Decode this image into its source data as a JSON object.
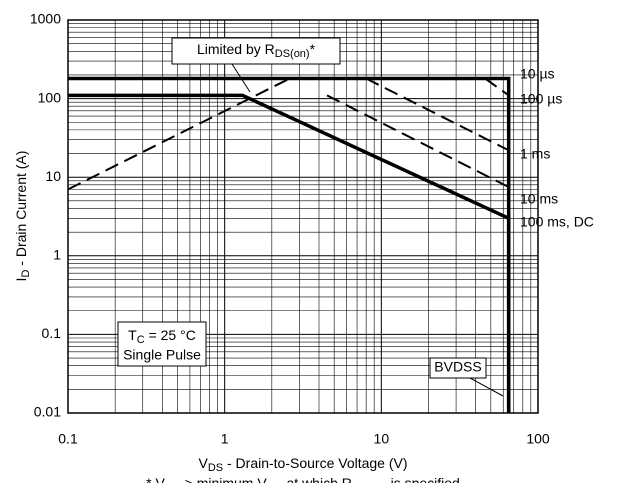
{
  "chart_data": {
    "type": "line",
    "log_x": true,
    "log_y": true,
    "grid": true,
    "xlim": [
      0.1,
      100
    ],
    "ylim": [
      0.01,
      1000
    ],
    "xticks": [
      0.1,
      1,
      10,
      100
    ],
    "yticks": [
      0.01,
      0.1,
      1,
      10,
      100,
      1000
    ],
    "x_label_parts": [
      "V",
      "DS",
      " - Drain-to-Source Voltage (V)"
    ],
    "y_label_parts": [
      "I",
      "D",
      " - Drain Current (A)"
    ],
    "series": [
      {
        "name": "10 µs",
        "color": "#000000",
        "dash": true,
        "x": [
          46,
          65
        ],
        "values": [
          180,
          110
        ]
      },
      {
        "name": "100 µs",
        "color": "#000000",
        "dash": false,
        "x": [
          0.1,
          65,
          65
        ],
        "values": [
          180,
          180,
          0.01
        ]
      },
      {
        "name": "1 ms",
        "color": "#000000",
        "dash": true,
        "x": [
          8,
          65
        ],
        "values": [
          180,
          22
        ]
      },
      {
        "name": "10 ms",
        "color": "#000000",
        "dash": true,
        "x": [
          4.5,
          65
        ],
        "values": [
          110,
          7.5
        ]
      },
      {
        "name": "100 ms, DC",
        "color": "#000000",
        "dash": false,
        "x": [
          0.1,
          1.3,
          65,
          65
        ],
        "values": [
          110,
          110,
          3,
          0.01
        ]
      }
    ],
    "limit_line": {
      "x": [
        0.1,
        2.6
      ],
      "values": [
        7,
        180
      ],
      "label_parts": [
        "Limited by R",
        "DS(on)",
        "*"
      ]
    },
    "conditions_parts": [
      "T",
      "C",
      " = 25 °C"
    ],
    "conditions_line2": "Single Pulse",
    "bvdss_label": "BVDSS",
    "footnote_parts": [
      "* V",
      "GS",
      " > minimum V",
      "GS",
      " at which R",
      "DS(on)",
      " is specified"
    ]
  }
}
